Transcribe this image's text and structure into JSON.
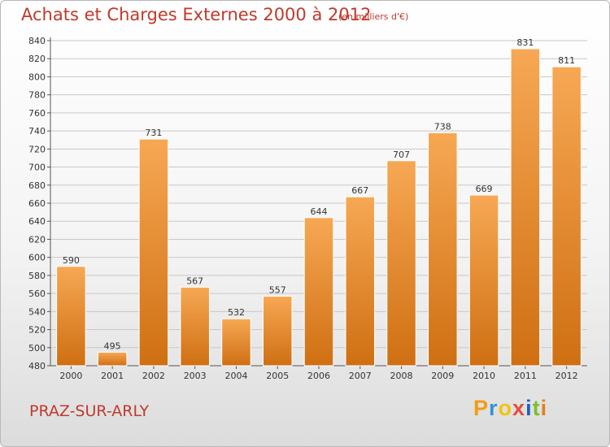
{
  "header": {
    "title": "Achats et Charges Externes 2000 à 2012",
    "unit": "(en milliers d'€)"
  },
  "footer": {
    "commune": "PRAZ-SUR-ARLY",
    "brand": {
      "letters": [
        "P",
        "r",
        "o",
        "x",
        "i",
        "t",
        "i"
      ],
      "colors": [
        "#f39c12",
        "#3a8fd9",
        "#f1c40f",
        "#e74c3c",
        "#1f5fbf",
        "#7cbf2b",
        "#e67e22"
      ]
    }
  },
  "colors": {
    "bar_top": "#f7a854",
    "bar_bottom": "#cf6f12",
    "text_accent": "#c0392b",
    "grid": "#c8c8c8"
  },
  "chart_data": {
    "type": "bar",
    "title": "Achats et Charges Externes 2000 à 2012",
    "categories": [
      "2000",
      "2001",
      "2002",
      "2003",
      "2004",
      "2005",
      "2006",
      "2007",
      "2008",
      "2009",
      "2010",
      "2011",
      "2012"
    ],
    "values": [
      590,
      495,
      731,
      567,
      532,
      557,
      644,
      667,
      707,
      738,
      669,
      831,
      811
    ],
    "ylim": [
      480,
      840
    ],
    "yticks": [
      480,
      500,
      520,
      540,
      560,
      580,
      600,
      620,
      640,
      660,
      680,
      700,
      720,
      740,
      760,
      780,
      800,
      820,
      840
    ],
    "grid": true,
    "show_value_labels": true
  }
}
